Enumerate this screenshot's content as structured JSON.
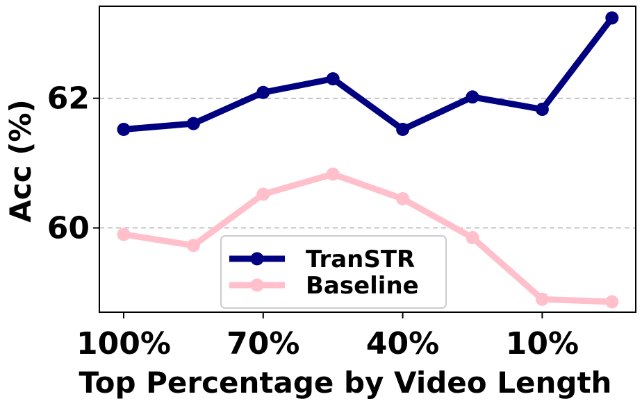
{
  "chart_data": {
    "type": "line",
    "x": [
      "100%",
      "85%",
      "70%",
      "55%",
      "40%",
      "25%",
      "10%",
      "0%"
    ],
    "xticks": [
      "100%",
      "70%",
      "40%",
      "10%"
    ],
    "xlabel": "Top Percentage by Video Length",
    "ylabel": "Acc (%)",
    "ylim": [
      58.7,
      63.42
    ],
    "yticks": [
      60,
      62
    ],
    "grid": "horizontal-dashed",
    "legend_position": "lower-center",
    "series": [
      {
        "name": "TranSTR",
        "color": "#000080",
        "values": [
          61.52,
          61.61,
          62.09,
          62.3,
          61.52,
          62.02,
          61.83,
          63.24
        ]
      },
      {
        "name": "Baseline",
        "color": "#ffc0cb",
        "values": [
          59.9,
          59.73,
          60.52,
          60.83,
          60.45,
          59.85,
          58.9,
          58.86
        ]
      }
    ]
  }
}
